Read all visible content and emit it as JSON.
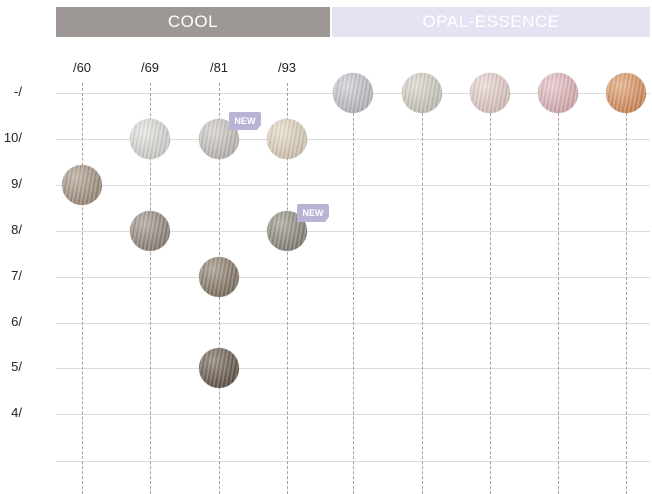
{
  "headers": {
    "cool": "COOL",
    "opal": "OPAL-ESSENCE"
  },
  "rows": [
    "-/",
    "10/",
    "9/",
    "8/",
    "7/",
    "6/",
    "5/",
    "4/"
  ],
  "columns": [
    "/60",
    "/69",
    "/81",
    "/93"
  ],
  "badge_text": "NEW",
  "swatches": [
    {
      "id": "swatch-60-9",
      "col": 0,
      "row": 2,
      "color": "#a89582",
      "badge": false
    },
    {
      "id": "swatch-69-10",
      "col": 1,
      "row": 1,
      "color": "#e2e0dc",
      "badge": false
    },
    {
      "id": "swatch-69-8",
      "col": 1,
      "row": 3,
      "color": "#968a7f",
      "badge": false
    },
    {
      "id": "swatch-81-10",
      "col": 2,
      "row": 1,
      "color": "#cbc7c1",
      "badge": true
    },
    {
      "id": "swatch-81-7",
      "col": 2,
      "row": 4,
      "color": "#8a7b68",
      "badge": false
    },
    {
      "id": "swatch-81-5",
      "col": 2,
      "row": 6,
      "color": "#6a5a4c",
      "badge": false
    },
    {
      "id": "swatch-93-10",
      "col": 3,
      "row": 1,
      "color": "#e4d7be",
      "badge": false
    },
    {
      "id": "swatch-93-8",
      "col": 3,
      "row": 3,
      "color": "#8f8b7f",
      "badge": true
    },
    {
      "id": "opal-swatch-1",
      "col": 4,
      "row": 0,
      "color": "#c9c6d0",
      "badge": false
    },
    {
      "id": "opal-swatch-2",
      "col": 5,
      "row": 0,
      "color": "#d6d3c6",
      "badge": false
    },
    {
      "id": "opal-swatch-3",
      "col": 6,
      "row": 0,
      "color": "#ead2cd",
      "badge": false
    },
    {
      "id": "opal-swatch-4",
      "col": 7,
      "row": 0,
      "color": "#e6b9be",
      "badge": false
    },
    {
      "id": "opal-swatch-5",
      "col": 8,
      "row": 0,
      "color": "#e1955f",
      "badge": false
    }
  ],
  "colors": {
    "cool_header": "#9d9795",
    "opal_header": "#e5e3f3",
    "badge": "#b9b3d6",
    "grid": "#dcdcdc",
    "guide": "#b59a9a"
  }
}
